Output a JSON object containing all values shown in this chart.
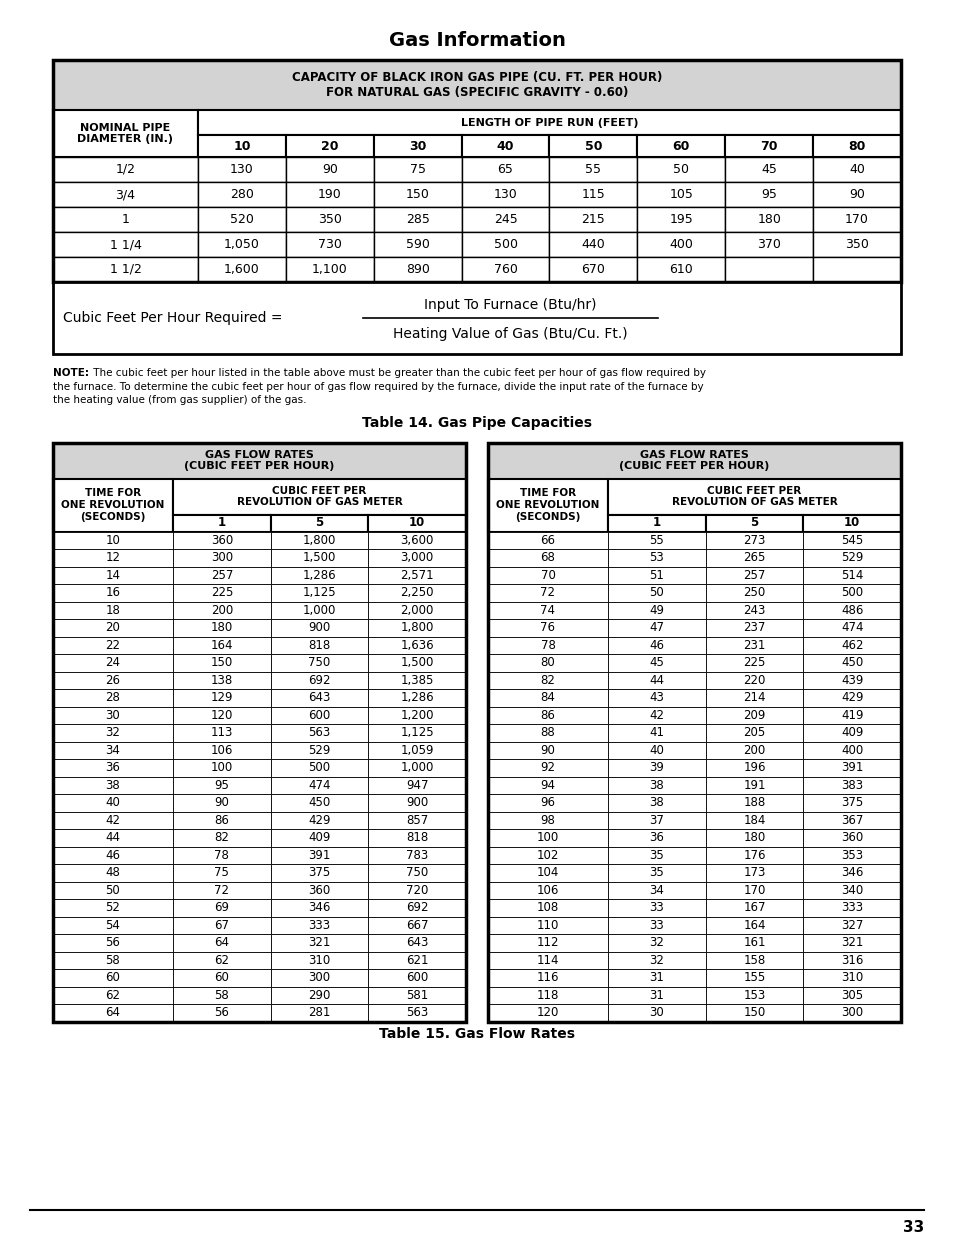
{
  "title": "Gas Information",
  "page_number": "33",
  "pipe_table": {
    "header1": "CAPACITY OF BLACK IRON GAS PIPE (CU. FT. PER HOUR)\nFOR NATURAL GAS (SPECIFIC GRAVITY - 0.60)",
    "col1_header": "NOMINAL PIPE\nDIAMETER (IN.)",
    "col2_header": "LENGTH OF PIPE RUN (FEET)",
    "subheaders": [
      "10",
      "20",
      "30",
      "40",
      "50",
      "60",
      "70",
      "80"
    ],
    "rows": [
      [
        "1/2",
        "130",
        "90",
        "75",
        "65",
        "55",
        "50",
        "45",
        "40"
      ],
      [
        "3/4",
        "280",
        "190",
        "150",
        "130",
        "115",
        "105",
        "95",
        "90"
      ],
      [
        "1",
        "520",
        "350",
        "285",
        "245",
        "215",
        "195",
        "180",
        "170"
      ],
      [
        "1 1/4",
        "1,050",
        "730",
        "590",
        "500",
        "440",
        "400",
        "370",
        "350"
      ],
      [
        "1 1/2",
        "1,600",
        "1,100",
        "890",
        "760",
        "670",
        "610",
        "",
        ""
      ]
    ]
  },
  "note_text_bold": "NOTE:",
  "note_text_rest": " The cubic feet per hour listed in the table above must be greater than the cubic feet per hour of gas flow required by the furnace. To determine the cubic feet per hour of gas flow required by the furnace, divide the input rate of the furnace by the heating value (from gas supplier) of the gas.",
  "table14_title": "Table 14. Gas Pipe Capacities",
  "table15_title": "Table 15. Gas Flow Rates",
  "flow_table_header1": "GAS FLOW RATES\n(CUBIC FEET PER HOUR)",
  "flow_table_col1_header": "TIME FOR\nONE REVOLUTION\n(SECONDS)",
  "flow_table_col2_header": "CUBIC FEET PER\nREVOLUTION OF GAS METER",
  "flow_table_subheaders": [
    "1",
    "5",
    "10"
  ],
  "flow_table_left": [
    [
      "10",
      "360",
      "1,800",
      "3,600"
    ],
    [
      "12",
      "300",
      "1,500",
      "3,000"
    ],
    [
      "14",
      "257",
      "1,286",
      "2,571"
    ],
    [
      "16",
      "225",
      "1,125",
      "2,250"
    ],
    [
      "18",
      "200",
      "1,000",
      "2,000"
    ],
    [
      "20",
      "180",
      "900",
      "1,800"
    ],
    [
      "22",
      "164",
      "818",
      "1,636"
    ],
    [
      "24",
      "150",
      "750",
      "1,500"
    ],
    [
      "26",
      "138",
      "692",
      "1,385"
    ],
    [
      "28",
      "129",
      "643",
      "1,286"
    ],
    [
      "30",
      "120",
      "600",
      "1,200"
    ],
    [
      "32",
      "113",
      "563",
      "1,125"
    ],
    [
      "34",
      "106",
      "529",
      "1,059"
    ],
    [
      "36",
      "100",
      "500",
      "1,000"
    ],
    [
      "38",
      "95",
      "474",
      "947"
    ],
    [
      "40",
      "90",
      "450",
      "900"
    ],
    [
      "42",
      "86",
      "429",
      "857"
    ],
    [
      "44",
      "82",
      "409",
      "818"
    ],
    [
      "46",
      "78",
      "391",
      "783"
    ],
    [
      "48",
      "75",
      "375",
      "750"
    ],
    [
      "50",
      "72",
      "360",
      "720"
    ],
    [
      "52",
      "69",
      "346",
      "692"
    ],
    [
      "54",
      "67",
      "333",
      "667"
    ],
    [
      "56",
      "64",
      "321",
      "643"
    ],
    [
      "58",
      "62",
      "310",
      "621"
    ],
    [
      "60",
      "60",
      "300",
      "600"
    ],
    [
      "62",
      "58",
      "290",
      "581"
    ],
    [
      "64",
      "56",
      "281",
      "563"
    ]
  ],
  "flow_table_right": [
    [
      "66",
      "55",
      "273",
      "545"
    ],
    [
      "68",
      "53",
      "265",
      "529"
    ],
    [
      "70",
      "51",
      "257",
      "514"
    ],
    [
      "72",
      "50",
      "250",
      "500"
    ],
    [
      "74",
      "49",
      "243",
      "486"
    ],
    [
      "76",
      "47",
      "237",
      "474"
    ],
    [
      "78",
      "46",
      "231",
      "462"
    ],
    [
      "80",
      "45",
      "225",
      "450"
    ],
    [
      "82",
      "44",
      "220",
      "439"
    ],
    [
      "84",
      "43",
      "214",
      "429"
    ],
    [
      "86",
      "42",
      "209",
      "419"
    ],
    [
      "88",
      "41",
      "205",
      "409"
    ],
    [
      "90",
      "40",
      "200",
      "400"
    ],
    [
      "92",
      "39",
      "196",
      "391"
    ],
    [
      "94",
      "38",
      "191",
      "383"
    ],
    [
      "96",
      "38",
      "188",
      "375"
    ],
    [
      "98",
      "37",
      "184",
      "367"
    ],
    [
      "100",
      "36",
      "180",
      "360"
    ],
    [
      "102",
      "35",
      "176",
      "353"
    ],
    [
      "104",
      "35",
      "173",
      "346"
    ],
    [
      "106",
      "34",
      "170",
      "340"
    ],
    [
      "108",
      "33",
      "167",
      "333"
    ],
    [
      "110",
      "33",
      "164",
      "327"
    ],
    [
      "112",
      "32",
      "161",
      "321"
    ],
    [
      "114",
      "32",
      "158",
      "316"
    ],
    [
      "116",
      "31",
      "155",
      "310"
    ],
    [
      "118",
      "31",
      "153",
      "305"
    ],
    [
      "120",
      "30",
      "150",
      "300"
    ]
  ],
  "bg_color": "#ffffff",
  "header_bg": "#d3d3d3",
  "border_color": "#000000"
}
